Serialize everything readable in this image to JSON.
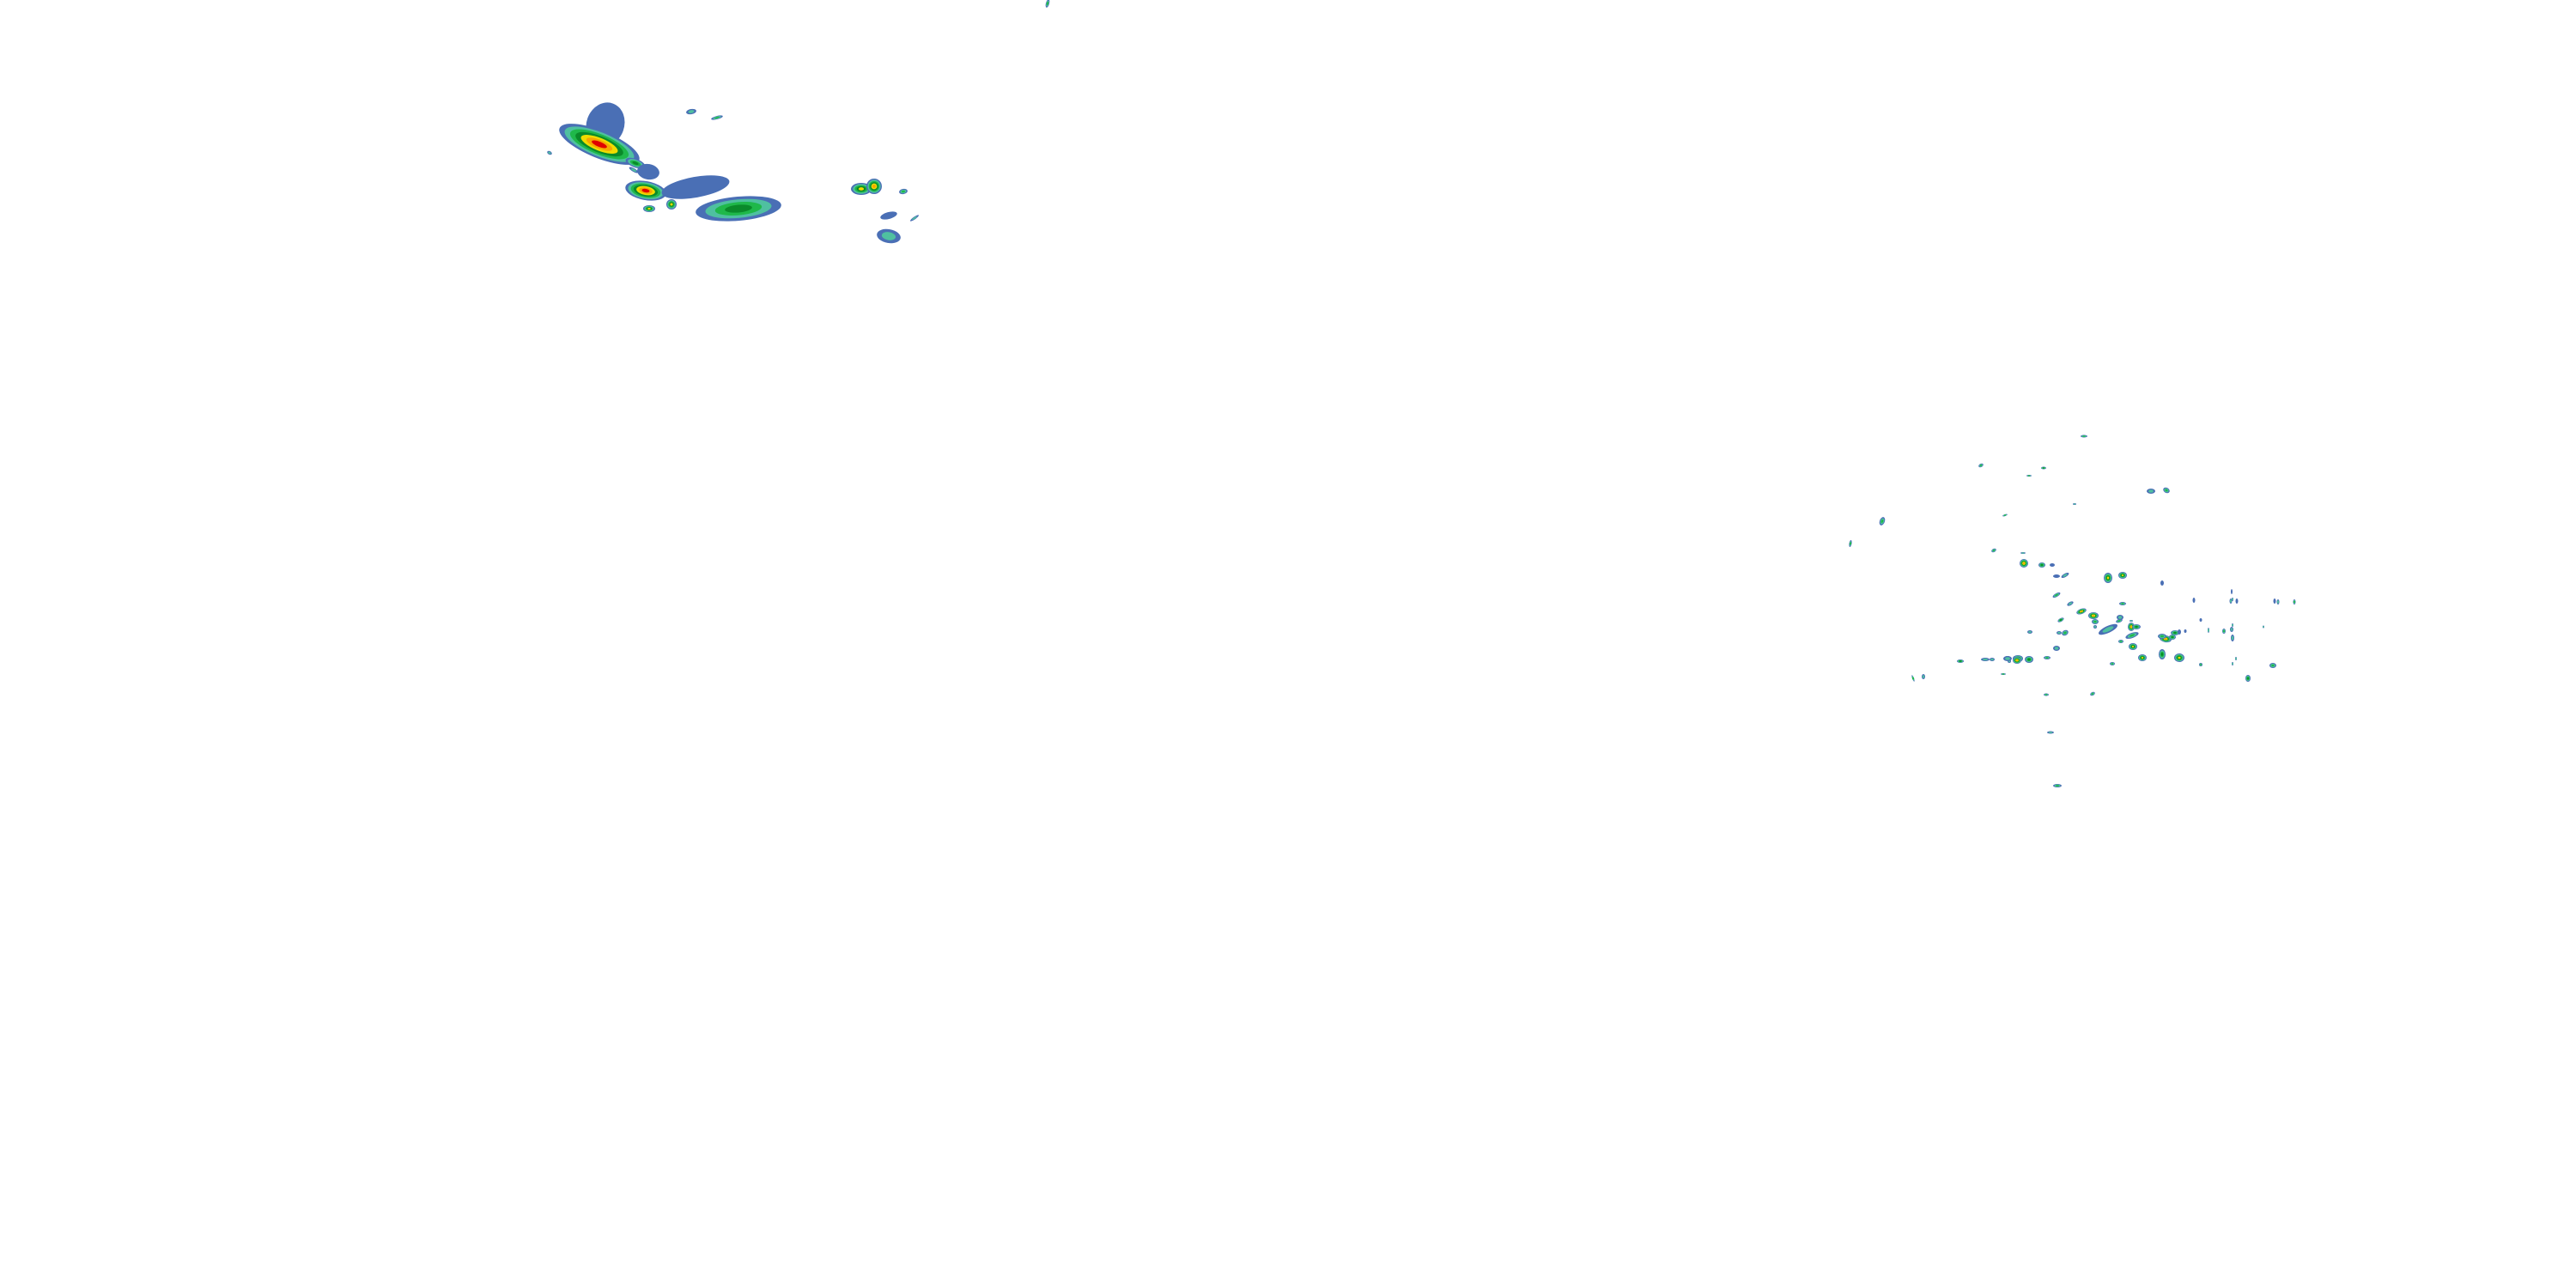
{
  "map": {
    "background": "#ffffff",
    "reflectivity_palette": {
      "light": "#4a6fb5",
      "light_moderate": "#4fc0a0",
      "moderate": "#1fb84a",
      "moderate_heavy": "#0a8a2a",
      "heavy": "#f0dc00",
      "very_heavy": "#f5a800",
      "intense": "#e00000"
    }
  }
}
